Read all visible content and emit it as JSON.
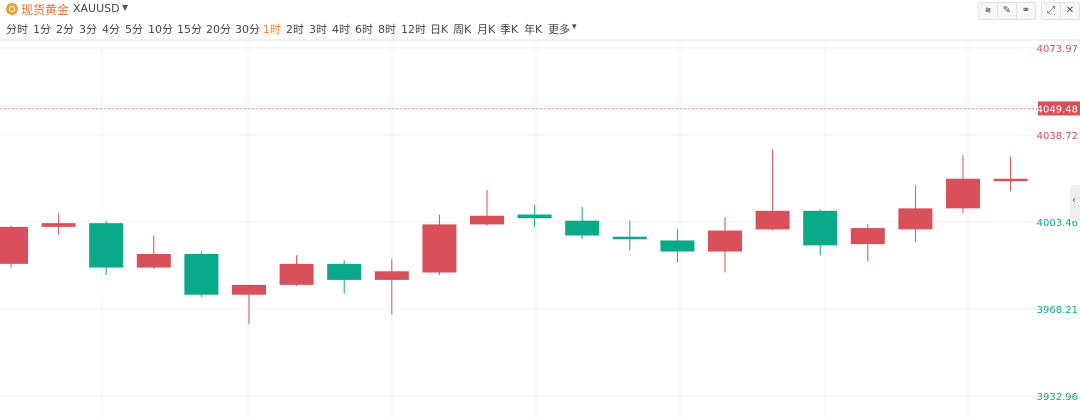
{
  "header": {
    "symbol_name": "现货黄金",
    "symbol_code": "XAUUSD",
    "logo_icon": "gold-coin-icon",
    "caret_icon": "caret-down-icon",
    "tools": [
      {
        "icon": "indicator-icon",
        "glyph": "⩬"
      },
      {
        "icon": "draw-pen-icon",
        "glyph": "✎"
      },
      {
        "icon": "compare-icon",
        "glyph": "⚭"
      },
      {
        "icon": "fullscreen-icon",
        "glyph": "⤢"
      },
      {
        "icon": "close-icon",
        "glyph": "✕"
      }
    ]
  },
  "intervals": {
    "items": [
      "分时",
      "1分",
      "2分",
      "3分",
      "4分",
      "5分",
      "10分",
      "15分",
      "20分",
      "30分",
      "1时",
      "2时",
      "3时",
      "4时",
      "6时",
      "8时",
      "12时",
      "日K",
      "周K",
      "月K",
      "季K",
      "年K",
      "更多"
    ],
    "active": "1时",
    "more_caret": "▾"
  },
  "colors": {
    "up": "#d94f5a",
    "down": "#0aa98a",
    "grid": "#f0f0f0",
    "price_line": "#e89aa0",
    "axis_up_text": "#d94f5a",
    "axis_down_text": "#0aa98a"
  },
  "chart_data": {
    "type": "candlestick",
    "y_ticks": [
      {
        "value": 4073.97,
        "label": "4073.97",
        "tone": "up"
      },
      {
        "value": 4038.72,
        "label": "4038.72",
        "tone": "up"
      },
      {
        "value": 4003.46,
        "label": "4003.46",
        "tone": "down"
      },
      {
        "value": 3968.21,
        "label": "3968.21",
        "tone": "down"
      },
      {
        "value": 3932.96,
        "label": "3932.96",
        "tone": "down"
      }
    ],
    "current_price": {
      "value": 4049.48,
      "label": "4049.48"
    },
    "ylim": [
      3932.96,
      4073.97
    ],
    "grid": true,
    "candles": [
      {
        "open": 3986.5,
        "close": 4001.5,
        "high": 4002.0,
        "low": 3985.0
      },
      {
        "open": 4001.5,
        "close": 4003.0,
        "high": 4007.0,
        "low": 3998.5
      },
      {
        "open": 4003.0,
        "close": 3985.0,
        "high": 4004.0,
        "low": 3982.0
      },
      {
        "open": 3985.0,
        "close": 3990.5,
        "high": 3998.0,
        "low": 3984.5
      },
      {
        "open": 3990.5,
        "close": 3974.0,
        "high": 3991.5,
        "low": 3973.0
      },
      {
        "open": 3974.0,
        "close": 3978.0,
        "high": 3978.0,
        "low": 3962.0
      },
      {
        "open": 3978.0,
        "close": 3986.5,
        "high": 3990.0,
        "low": 3977.5
      },
      {
        "open": 3986.5,
        "close": 3980.0,
        "high": 3988.0,
        "low": 3974.5
      },
      {
        "open": 3980.0,
        "close": 3983.5,
        "high": 3988.5,
        "low": 3966.0
      },
      {
        "open": 3983.0,
        "close": 4002.5,
        "high": 4006.5,
        "low": 3982.0
      },
      {
        "open": 4002.5,
        "close": 4006.0,
        "high": 4016.5,
        "low": 4002.0
      },
      {
        "open": 4006.5,
        "close": 4005.0,
        "high": 4010.5,
        "low": 4001.5
      },
      {
        "open": 4004.0,
        "close": 3998.0,
        "high": 4009.5,
        "low": 3996.5
      },
      {
        "open": 3997.5,
        "close": 3996.5,
        "high": 4004.0,
        "low": 3992.0
      },
      {
        "open": 3996.0,
        "close": 3991.5,
        "high": 4000.5,
        "low": 3987.0
      },
      {
        "open": 3991.5,
        "close": 4000.0,
        "high": 4005.5,
        "low": 3983.0
      },
      {
        "open": 4000.5,
        "close": 4008.0,
        "high": 4033.0,
        "low": 4000.0
      },
      {
        "open": 4008.0,
        "close": 3994.0,
        "high": 4008.5,
        "low": 3990.0
      },
      {
        "open": 3994.5,
        "close": 4001.0,
        "high": 4002.5,
        "low": 3987.5
      },
      {
        "open": 4000.5,
        "close": 4009.0,
        "high": 4018.5,
        "low": 3995.5
      },
      {
        "open": 4009.0,
        "close": 4021.0,
        "high": 4030.5,
        "low": 4007.0
      },
      {
        "open": 4020.0,
        "close": 4021.0,
        "high": 4030.0,
        "low": 4016.0
      }
    ]
  }
}
